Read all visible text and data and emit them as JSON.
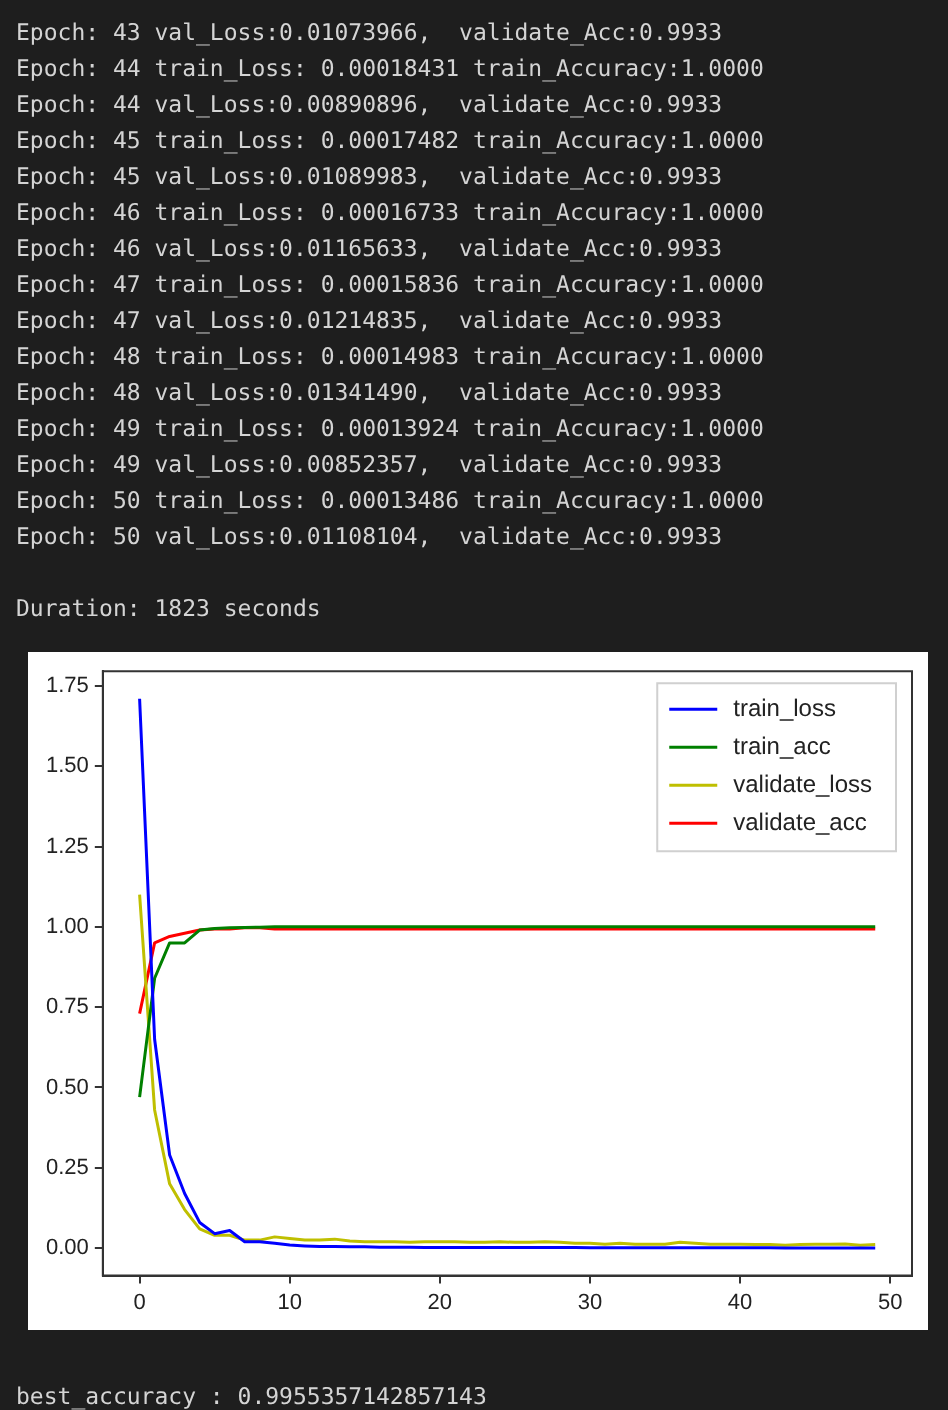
{
  "chart_data": {
    "type": "line",
    "x": [
      0,
      1,
      2,
      3,
      4,
      5,
      6,
      7,
      8,
      9,
      10,
      11,
      12,
      13,
      14,
      15,
      16,
      17,
      18,
      19,
      20,
      21,
      22,
      23,
      24,
      25,
      26,
      27,
      28,
      29,
      30,
      31,
      32,
      33,
      34,
      35,
      36,
      37,
      38,
      39,
      40,
      41,
      42,
      43,
      44,
      45,
      46,
      47,
      48,
      49
    ],
    "series": [
      {
        "name": "train_loss",
        "color": "#0000ff",
        "values": [
          1.71,
          0.65,
          0.29,
          0.17,
          0.08,
          0.045,
          0.055,
          0.02,
          0.02,
          0.015,
          0.01,
          0.007,
          0.005,
          0.005,
          0.004,
          0.004,
          0.003,
          0.003,
          0.003,
          0.002,
          0.002,
          0.002,
          0.002,
          0.002,
          0.002,
          0.002,
          0.002,
          0.002,
          0.002,
          0.002,
          0.001,
          0.001,
          0.001,
          0.001,
          0.001,
          0.001,
          0.001,
          0.001,
          0.001,
          0.001,
          0.001,
          0.001,
          0.001,
          0.0002,
          0.0002,
          0.0002,
          0.0002,
          0.0001,
          0.0001,
          0.0001
        ]
      },
      {
        "name": "train_acc",
        "color": "#008000",
        "values": [
          0.47,
          0.84,
          0.95,
          0.95,
          0.99,
          0.995,
          0.997,
          0.998,
          0.999,
          1.0,
          1.0,
          1.0,
          1.0,
          1.0,
          1.0,
          1.0,
          1.0,
          1.0,
          1.0,
          1.0,
          1.0,
          1.0,
          1.0,
          1.0,
          1.0,
          1.0,
          1.0,
          1.0,
          1.0,
          1.0,
          1.0,
          1.0,
          1.0,
          1.0,
          1.0,
          1.0,
          1.0,
          1.0,
          1.0,
          1.0,
          1.0,
          1.0,
          1.0,
          1.0,
          1.0,
          1.0,
          1.0,
          1.0,
          1.0,
          1.0
        ]
      },
      {
        "name": "validate_loss",
        "color": "#bfbf00",
        "values": [
          1.1,
          0.43,
          0.2,
          0.12,
          0.06,
          0.04,
          0.04,
          0.025,
          0.025,
          0.035,
          0.03,
          0.025,
          0.025,
          0.028,
          0.022,
          0.02,
          0.02,
          0.02,
          0.018,
          0.02,
          0.02,
          0.02,
          0.018,
          0.018,
          0.02,
          0.018,
          0.018,
          0.02,
          0.018,
          0.015,
          0.015,
          0.012,
          0.015,
          0.012,
          0.012,
          0.012,
          0.018,
          0.015,
          0.012,
          0.012,
          0.012,
          0.011,
          0.011,
          0.009,
          0.011,
          0.012,
          0.012,
          0.013,
          0.009,
          0.011
        ]
      },
      {
        "name": "validate_acc",
        "color": "#ff0000",
        "values": [
          0.73,
          0.95,
          0.97,
          0.98,
          0.99,
          0.993,
          0.993,
          0.997,
          0.997,
          0.993,
          0.993,
          0.993,
          0.993,
          0.993,
          0.993,
          0.993,
          0.993,
          0.993,
          0.993,
          0.993,
          0.993,
          0.993,
          0.993,
          0.993,
          0.993,
          0.993,
          0.993,
          0.993,
          0.993,
          0.993,
          0.993,
          0.993,
          0.993,
          0.993,
          0.993,
          0.993,
          0.993,
          0.993,
          0.993,
          0.993,
          0.993,
          0.993,
          0.993,
          0.993,
          0.993,
          0.993,
          0.993,
          0.993,
          0.993,
          0.993
        ]
      }
    ],
    "xlim": [
      -2.45,
      51.45
    ],
    "xticks": [
      0,
      10,
      20,
      30,
      40,
      50
    ],
    "ylim": [
      -0.0855,
      1.7956
    ],
    "yticks": [
      {
        "value": 0,
        "label": "0.00"
      },
      {
        "value": 0.25,
        "label": "0.25"
      },
      {
        "value": 0.5,
        "label": "0.50"
      },
      {
        "value": 0.75,
        "label": "0.75"
      },
      {
        "value": 1,
        "label": "1.00"
      },
      {
        "value": 1.25,
        "label": "1.25"
      },
      {
        "value": 1.5,
        "label": "1.50"
      },
      {
        "value": 1.75,
        "label": "1.75"
      }
    ],
    "grid": false,
    "legend": "top right",
    "marker": "none",
    "line_style": "solid",
    "annotations": [
      "Epoch: 43 val_Loss:0.01073966,  validate_Acc:0.9933",
      "Epoch: 44 train_Loss: 0.00018431 train_Accuracy:1.0000",
      "Epoch: 44 val_Loss:0.00890896,  validate_Acc:0.9933",
      "Epoch: 45 train_Loss: 0.00017482 train_Accuracy:1.0000",
      "Epoch: 45 val_Loss:0.01089983,  validate_Acc:0.9933",
      "Epoch: 46 train_Loss: 0.00016733 train_Accuracy:1.0000",
      "Epoch: 46 val_Loss:0.01165633,  validate_Acc:0.9933",
      "Epoch: 47 train_Loss: 0.00015836 train_Accuracy:1.0000",
      "Epoch: 47 val_Loss:0.01214835,  validate_Acc:0.9933",
      "Epoch: 48 train_Loss: 0.00014983 train_Accuracy:1.0000",
      "Epoch: 48 val_Loss:0.01341490,  validate_Acc:0.9933",
      "Epoch: 49 train_Loss: 0.00013924 train_Accuracy:1.0000",
      "Epoch: 49 val_Loss:0.00852357,  validate_Acc:0.9933",
      "Epoch: 50 train_Loss: 0.00013486 train_Accuracy:1.0000",
      "Epoch: 50 val_Loss:0.01108104,  validate_Acc:0.9933",
      "Duration: 1823 seconds",
      "best_accuracy : 0.9955357142857143"
    ]
  }
}
